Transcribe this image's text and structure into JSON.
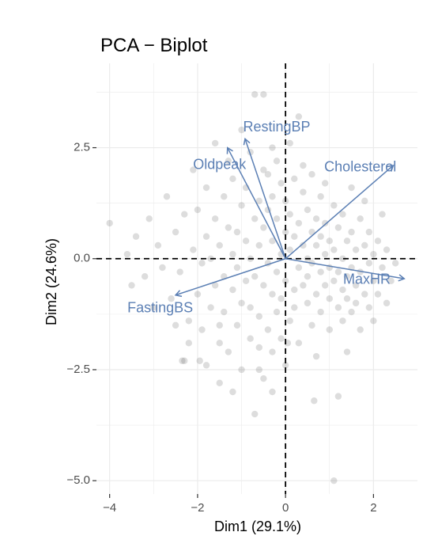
{
  "chart_data": {
    "type": "scatter",
    "title": "PCA − Biplot",
    "xlabel": "Dim1 (29.1%)",
    "ylabel": "Dim2 (24.6%)",
    "xlim": [
      -4.3,
      3.0
    ],
    "ylim": [
      -5.3,
      4.4
    ],
    "x_ticks": [
      -4,
      -2,
      0,
      2
    ],
    "x_tick_labels": [
      "−4",
      "−2",
      "0",
      "2"
    ],
    "y_ticks": [
      -5,
      -2.5,
      0,
      2.5
    ],
    "y_tick_labels": [
      "−5.0",
      "−2.5",
      "0.0",
      "2.5"
    ],
    "grid": true,
    "reference_lines": [
      {
        "axis": "x",
        "value": 0,
        "style": "dashed"
      },
      {
        "axis": "y",
        "value": 0,
        "style": "dashed"
      }
    ],
    "colors": {
      "points": "#666666",
      "vectors": "#5b7fb4",
      "grid": "#ebebeb"
    },
    "points": [
      [
        -4.0,
        0.8
      ],
      [
        -3.6,
        0.1
      ],
      [
        -3.5,
        -0.6
      ],
      [
        -3.4,
        0.5
      ],
      [
        -3.2,
        -0.4
      ],
      [
        -3.1,
        0.9
      ],
      [
        -3.0,
        -1.1
      ],
      [
        -2.9,
        0.3
      ],
      [
        -2.8,
        -0.2
      ],
      [
        -2.7,
        1.4
      ],
      [
        -2.6,
        -0.9
      ],
      [
        -2.5,
        0.6
      ],
      [
        -2.5,
        -1.5
      ],
      [
        -2.4,
        -0.3
      ],
      [
        -2.3,
        1.0
      ],
      [
        -2.3,
        -2.3
      ],
      [
        -2.2,
        -1.9
      ],
      [
        -2.2,
        -1.4
      ],
      [
        -2.1,
        0.2
      ],
      [
        -2.1,
        2.0
      ],
      [
        -2.0,
        -0.8
      ],
      [
        -2.0,
        1.1
      ],
      [
        -1.9,
        -0.1
      ],
      [
        -1.9,
        -1.6
      ],
      [
        -1.8,
        0.5
      ],
      [
        -1.8,
        -2.4
      ],
      [
        -1.8,
        1.6
      ],
      [
        -1.7,
        -1.1
      ],
      [
        -1.7,
        0.0
      ],
      [
        -1.6,
        2.6
      ],
      [
        -1.6,
        -0.6
      ],
      [
        -1.6,
        0.9
      ],
      [
        -1.5,
        -1.9
      ],
      [
        -1.5,
        0.3
      ],
      [
        -1.5,
        -2.8
      ],
      [
        -1.4,
        1.4
      ],
      [
        -1.4,
        -0.4
      ],
      [
        -1.4,
        -1.2
      ],
      [
        -1.3,
        0.7
      ],
      [
        -1.3,
        -2.1
      ],
      [
        -1.3,
        2.2
      ],
      [
        -1.2,
        -0.7
      ],
      [
        -1.2,
        0.1
      ],
      [
        -1.2,
        -3.0
      ],
      [
        -1.2,
        1.8
      ],
      [
        -1.1,
        -1.5
      ],
      [
        -1.1,
        0.6
      ],
      [
        -1.1,
        -0.2
      ],
      [
        -1.0,
        2.9
      ],
      [
        -1.0,
        1.2
      ],
      [
        -1.0,
        -1.0
      ],
      [
        -1.0,
        -2.5
      ],
      [
        -0.9,
        0.4
      ],
      [
        -0.9,
        -0.5
      ],
      [
        -0.9,
        1.6
      ],
      [
        -0.8,
        -1.8
      ],
      [
        -0.8,
        0.0
      ],
      [
        -0.8,
        2.4
      ],
      [
        -0.8,
        -1.1
      ],
      [
        -0.7,
        0.9
      ],
      [
        -0.7,
        -3.5
      ],
      [
        -0.7,
        3.7
      ],
      [
        -0.7,
        -0.4
      ],
      [
        -0.6,
        1.3
      ],
      [
        -0.6,
        -2.0
      ],
      [
        -0.6,
        0.3
      ],
      [
        -0.6,
        -1.3
      ],
      [
        -0.5,
        2.0
      ],
      [
        -0.5,
        -0.6
      ],
      [
        -0.5,
        0.7
      ],
      [
        -0.5,
        -2.7
      ],
      [
        -0.5,
        3.7
      ],
      [
        -0.4,
        1.1
      ],
      [
        -0.4,
        -0.1
      ],
      [
        -0.4,
        -1.6
      ],
      [
        -0.4,
        1.9
      ],
      [
        -0.3,
        0.4
      ],
      [
        -0.3,
        -0.8
      ],
      [
        -0.3,
        2.5
      ],
      [
        -0.3,
        -2.1
      ],
      [
        -0.3,
        1.4
      ],
      [
        -0.2,
        -0.3
      ],
      [
        -0.2,
        0.9
      ],
      [
        -0.2,
        -1.2
      ],
      [
        -0.2,
        2.2
      ],
      [
        -0.1,
        0.1
      ],
      [
        -0.1,
        -0.9
      ],
      [
        -0.1,
        1.7
      ],
      [
        -0.1,
        -1.8
      ],
      [
        0.0,
        0.6
      ],
      [
        0.0,
        -0.5
      ],
      [
        0.0,
        1.3
      ],
      [
        0.0,
        -2.4
      ],
      [
        0.1,
        0.2
      ],
      [
        0.1,
        2.6
      ],
      [
        0.1,
        -1.4
      ],
      [
        0.1,
        1.0
      ],
      [
        0.2,
        -0.7
      ],
      [
        0.2,
        0.5
      ],
      [
        0.2,
        1.8
      ],
      [
        0.2,
        -1.1
      ],
      [
        0.3,
        3.2
      ],
      [
        0.3,
        -0.2
      ],
      [
        0.3,
        0.8
      ],
      [
        0.3,
        -1.9
      ],
      [
        0.4,
        0.3
      ],
      [
        0.4,
        1.5
      ],
      [
        0.4,
        -0.6
      ],
      [
        0.4,
        2.1
      ],
      [
        0.5,
        -1.0
      ],
      [
        0.5,
        0.0
      ],
      [
        0.5,
        1.1
      ],
      [
        0.5,
        -0.4
      ],
      [
        0.6,
        0.6
      ],
      [
        0.6,
        -1.5
      ],
      [
        0.6,
        1.9
      ],
      [
        0.6,
        -0.1
      ],
      [
        0.7,
        0.9
      ],
      [
        0.7,
        -0.8
      ],
      [
        0.7,
        0.3
      ],
      [
        0.7,
        -2.2
      ],
      [
        0.8,
        1.4
      ],
      [
        0.8,
        -0.3
      ],
      [
        0.8,
        0.5
      ],
      [
        0.8,
        -1.2
      ],
      [
        0.9,
        0.1
      ],
      [
        0.9,
        1.7
      ],
      [
        0.9,
        -0.6
      ],
      [
        0.9,
        0.8
      ],
      [
        1.0,
        -0.9
      ],
      [
        1.0,
        0.4
      ],
      [
        1.0,
        -0.2
      ],
      [
        1.0,
        -1.6
      ],
      [
        1.1,
        1.2
      ],
      [
        1.1,
        -0.5
      ],
      [
        1.1,
        0.2
      ],
      [
        1.1,
        -5.0
      ],
      [
        1.2,
        -1.1
      ],
      [
        1.2,
        0.7
      ],
      [
        1.2,
        -0.3
      ],
      [
        1.2,
        -3.1
      ],
      [
        1.3,
        0.0
      ],
      [
        1.3,
        -0.7
      ],
      [
        1.3,
        1.0
      ],
      [
        1.3,
        -1.4
      ],
      [
        1.4,
        0.4
      ],
      [
        1.4,
        -0.4
      ],
      [
        1.4,
        -0.9
      ],
      [
        1.5,
        1.6
      ],
      [
        1.5,
        -0.2
      ],
      [
        1.5,
        0.6
      ],
      [
        1.5,
        -1.2
      ],
      [
        1.6,
        -0.6
      ],
      [
        1.6,
        0.2
      ],
      [
        1.6,
        -1.0
      ],
      [
        1.7,
        0.9
      ],
      [
        1.7,
        -0.3
      ],
      [
        1.7,
        -1.6
      ],
      [
        1.8,
        0.3
      ],
      [
        1.8,
        -0.8
      ],
      [
        1.8,
        1.3
      ],
      [
        1.9,
        -0.1
      ],
      [
        1.9,
        -1.1
      ],
      [
        1.9,
        0.6
      ],
      [
        2.0,
        -0.5
      ],
      [
        2.0,
        0.1
      ],
      [
        2.0,
        -1.4
      ],
      [
        2.1,
        0.4
      ],
      [
        2.1,
        -0.8
      ],
      [
        2.2,
        -0.2
      ],
      [
        2.2,
        1.0
      ],
      [
        2.3,
        -1.0
      ],
      [
        2.3,
        0.2
      ],
      [
        2.4,
        -0.5
      ],
      [
        2.5,
        -0.1
      ],
      [
        -1.95,
        -2.3
      ],
      [
        -2.35,
        -2.3
      ],
      [
        -1.5,
        -1.5
      ],
      [
        -0.6,
        -2.5
      ],
      [
        -0.3,
        -3.0
      ],
      [
        0.05,
        -1.9
      ],
      [
        0.65,
        -3.2
      ],
      [
        1.4,
        -2.1
      ]
    ],
    "vectors": [
      {
        "name": "RestingBP",
        "x": -0.92,
        "y": 2.7,
        "label_x": -0.2,
        "label_y": 2.95
      },
      {
        "name": "Oldpeak",
        "x": -1.32,
        "y": 2.5,
        "label_x": -1.5,
        "label_y": 2.1
      },
      {
        "name": "Cholesterol",
        "x": 2.45,
        "y": 2.1,
        "label_x": 1.7,
        "label_y": 2.05
      },
      {
        "name": "MaxHR",
        "x": 2.7,
        "y": -0.45,
        "label_x": 1.85,
        "label_y": -0.48
      },
      {
        "name": "FastingBS",
        "x": -2.5,
        "y": -0.82,
        "label_x": -2.85,
        "label_y": -1.12
      }
    ]
  }
}
